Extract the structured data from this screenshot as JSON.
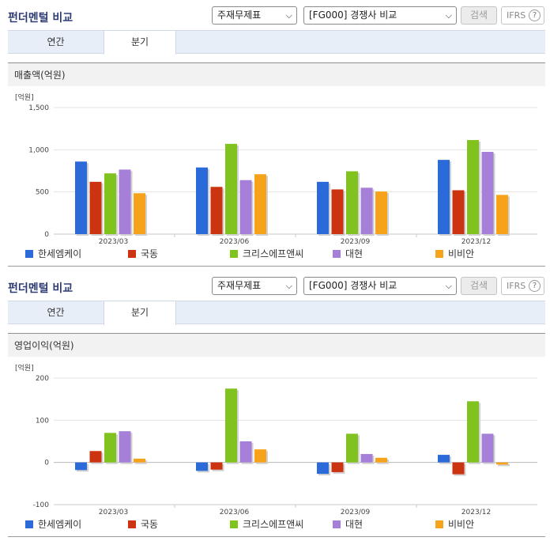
{
  "panels": [
    {
      "title": "펀더멘털 비교",
      "select_statement": "주재무제표",
      "select_compare": "[FG000] 경쟁사 비교",
      "search_label": "검색",
      "ifrs_label": "IFRS",
      "help_symbol": "?",
      "tabs": [
        "연간",
        "분기"
      ],
      "active_tab": "분기",
      "subhead": "매출액(억원)",
      "chart_data": {
        "type": "bar",
        "unit_label": "[억원]",
        "categories": [
          "2023/03",
          "2023/06",
          "2023/09",
          "2023/12"
        ],
        "ylim": [
          0,
          1500
        ],
        "yticks": [
          0,
          500,
          1000,
          1500
        ],
        "ytick_labels": [
          "0",
          "500",
          "1,000",
          "1,500"
        ],
        "grid": true,
        "legend_position": "bottom",
        "series": [
          {
            "name": "한세엠케이",
            "color": "#2b6ad9",
            "values": [
              860,
              790,
              620,
              880
            ]
          },
          {
            "name": "국동",
            "color": "#cc3311",
            "values": [
              620,
              560,
              530,
              520
            ]
          },
          {
            "name": "크리스에프앤씨",
            "color": "#80c21e",
            "values": [
              720,
              1070,
              745,
              1115
            ]
          },
          {
            "name": "대현",
            "color": "#a57fd8",
            "values": [
              765,
              640,
              550,
              975
            ]
          },
          {
            "name": "비비안",
            "color": "#f7a21b",
            "values": [
              485,
              710,
              505,
              465
            ]
          }
        ]
      }
    },
    {
      "title": "펀더멘털 비교",
      "select_statement": "주재무제표",
      "select_compare": "[FG000] 경쟁사 비교",
      "search_label": "검색",
      "ifrs_label": "IFRS",
      "help_symbol": "?",
      "tabs": [
        "연간",
        "분기"
      ],
      "active_tab": "분기",
      "subhead": "영업이익(억원)",
      "chart_data": {
        "type": "bar",
        "unit_label": "[억원]",
        "categories": [
          "2023/03",
          "2023/06",
          "2023/09",
          "2023/12"
        ],
        "ylim": [
          -100,
          200
        ],
        "yticks": [
          -100,
          0,
          100,
          200
        ],
        "ytick_labels": [
          "-100",
          "0",
          "100",
          "200"
        ],
        "grid": true,
        "legend_position": "bottom",
        "series": [
          {
            "name": "한세엠케이",
            "color": "#2b6ad9",
            "values": [
              -18,
              -20,
              -27,
              18
            ]
          },
          {
            "name": "국동",
            "color": "#cc3311",
            "values": [
              27,
              -17,
              -23,
              -28
            ]
          },
          {
            "name": "크리스에프앤씨",
            "color": "#80c21e",
            "values": [
              70,
              175,
              68,
              145
            ]
          },
          {
            "name": "대현",
            "color": "#a57fd8",
            "values": [
              74,
              50,
              20,
              68
            ]
          },
          {
            "name": "비비안",
            "color": "#f7a21b",
            "values": [
              9,
              31,
              11,
              -5
            ]
          }
        ]
      }
    }
  ]
}
